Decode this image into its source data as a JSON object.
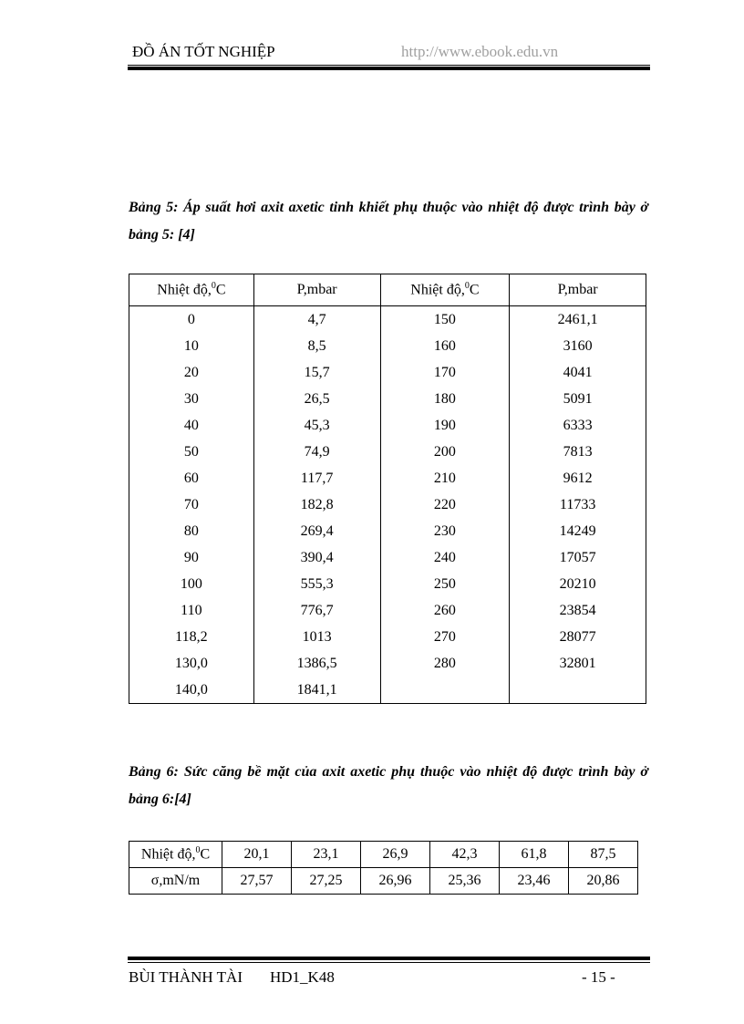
{
  "header": {
    "title": "ĐỒ ÁN TỐT NGHIỆP",
    "url": "http://www.ebook.edu.vn"
  },
  "table5": {
    "caption": "Bảng 5: Áp suất hơi  axit axetic tinh khiết phụ thuộc vào nhiệt độ được trình bày ở bảng 5: [4]",
    "headers": [
      "Nhiệt độ,",
      "0",
      "C",
      "P,mbar"
    ],
    "rows": [
      [
        "0",
        "4,7",
        "150",
        "2461,1"
      ],
      [
        "10",
        "8,5",
        "160",
        "3160"
      ],
      [
        "20",
        "15,7",
        "170",
        "4041"
      ],
      [
        "30",
        "26,5",
        "180",
        "5091"
      ],
      [
        "40",
        "45,3",
        "190",
        "6333"
      ],
      [
        "50",
        "74,9",
        "200",
        "7813"
      ],
      [
        "60",
        "117,7",
        "210",
        "9612"
      ],
      [
        "70",
        "182,8",
        "220",
        "11733"
      ],
      [
        "80",
        "269,4",
        "230",
        "14249"
      ],
      [
        "90",
        "390,4",
        "240",
        "17057"
      ],
      [
        "100",
        "555,3",
        "250",
        "20210"
      ],
      [
        "110",
        "776,7",
        "260",
        "23854"
      ],
      [
        "118,2",
        "1013",
        "270",
        "28077"
      ],
      [
        "130,0",
        "1386,5",
        "280",
        "32801"
      ],
      [
        "140,0",
        "1841,1",
        "",
        ""
      ]
    ]
  },
  "table6": {
    "caption": "Bảng 6: Sức căng bề mặt của axit axetic phụ thuộc vào nhiệt độ được trình bày ở  bảng 6:[4]",
    "row1_label": "Nhiệt độ,",
    "row1": [
      "20,1",
      "23,1",
      "26,9",
      "42,3",
      "61,8",
      "87,5"
    ],
    "row2_label": "σ,mN/m",
    "row2": [
      "27,57",
      "27,25",
      "26,96",
      "25,36",
      "23,46",
      "20,86"
    ]
  },
  "footer": {
    "author": "BÙI THÀNH TÀI",
    "class": "HD1_K48",
    "page": "- 15 -"
  }
}
